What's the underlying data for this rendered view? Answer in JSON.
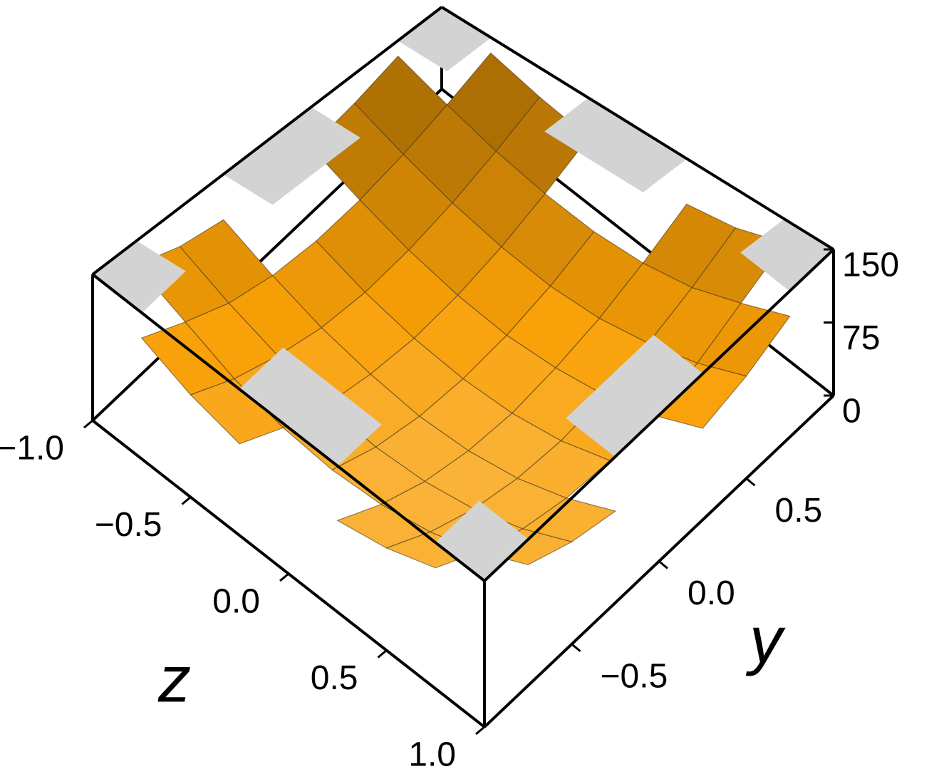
{
  "chart_data": {
    "type": "surface3d",
    "xlabel": "z",
    "ylabel": "y",
    "xlim": [
      -1,
      1
    ],
    "ylim": [
      -1,
      1
    ],
    "zlim": [
      0,
      150
    ],
    "xticks": [
      {
        "value": -1,
        "label": "−1.0"
      },
      {
        "value": -0.5,
        "label": "−0.5"
      },
      {
        "value": 0,
        "label": "0.0"
      },
      {
        "value": 0.5,
        "label": "0.5"
      },
      {
        "value": 1,
        "label": "1.0"
      }
    ],
    "yticks": [
      {
        "value": -0.5,
        "label": "−0.5"
      },
      {
        "value": 0,
        "label": "0.0"
      },
      {
        "value": 0.5,
        "label": "0.5"
      }
    ],
    "zticks": [
      0,
      75,
      150
    ],
    "x": [
      -1,
      -0.75,
      -0.5,
      -0.25,
      0,
      0.25,
      0.5,
      0.75,
      1
    ],
    "y": [
      -1,
      -0.75,
      -0.5,
      -0.25,
      0,
      0.25,
      0.5,
      0.75,
      1
    ],
    "values": [
      [
        null,
        124,
        105,
        94,
        null,
        94,
        105,
        124,
        null
      ],
      [
        124,
        98,
        79,
        68,
        64,
        68,
        79,
        98,
        124
      ],
      [
        105,
        79,
        60,
        49,
        45,
        49,
        60,
        79,
        105
      ],
      [
        94,
        68,
        49,
        38,
        34,
        38,
        49,
        68,
        94
      ],
      [
        null,
        64,
        45,
        34,
        30,
        34,
        45,
        64,
        null
      ],
      [
        94,
        68,
        49,
        38,
        34,
        38,
        49,
        68,
        94
      ],
      [
        105,
        79,
        60,
        49,
        45,
        49,
        60,
        79,
        105
      ],
      [
        124,
        98,
        79,
        68,
        64,
        68,
        79,
        98,
        124
      ],
      [
        null,
        124,
        105,
        94,
        null,
        94,
        105,
        124,
        null
      ]
    ],
    "color": "#f5a623",
    "cap_color": "#d3d3d3"
  }
}
